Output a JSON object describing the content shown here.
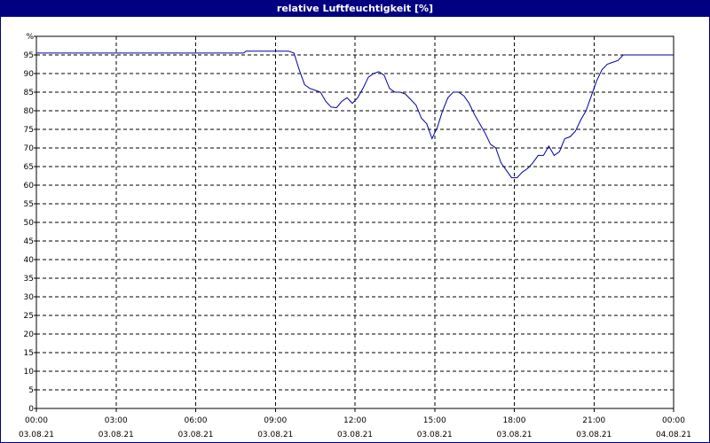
{
  "chart_data": {
    "type": "line",
    "title": "relative Luftfeuchtigkeit [%]",
    "y_unit_label": "%",
    "ylim": [
      0,
      100
    ],
    "xlim_hours": [
      0,
      24
    ],
    "grid": true,
    "y_ticks": [
      0,
      5,
      10,
      15,
      20,
      25,
      30,
      35,
      40,
      45,
      50,
      55,
      60,
      65,
      70,
      75,
      80,
      85,
      90,
      95
    ],
    "x_ticks": [
      {
        "time": "00:00",
        "date": "03.08.21"
      },
      {
        "time": "03:00",
        "date": "03.08.21"
      },
      {
        "time": "06:00",
        "date": "03.08.21"
      },
      {
        "time": "09:00",
        "date": "03.08.21"
      },
      {
        "time": "12:00",
        "date": "03.08.21"
      },
      {
        "time": "15:00",
        "date": "03.08.21"
      },
      {
        "time": "18:00",
        "date": "03.08.21"
      },
      {
        "time": "21:00",
        "date": "03.08.21"
      },
      {
        "time": "00:00",
        "date": "04.08.21"
      }
    ],
    "series": [
      {
        "color": "#0000a0",
        "x": [
          "03.08.21 00:00",
          "03.08.21 07:48",
          "03.08.21 07:54",
          "03.08.21 09:30",
          "03.08.21 09:42",
          "03.08.21 09:54",
          "03.08.21 10:06",
          "03.08.21 10:18",
          "03.08.21 10:30",
          "03.08.21 10:42",
          "03.08.21 10:54",
          "03.08.21 11:06",
          "03.08.21 11:18",
          "03.08.21 11:30",
          "03.08.21 11:42",
          "03.08.21 11:54",
          "03.08.21 12:06",
          "03.08.21 12:18",
          "03.08.21 12:30",
          "03.08.21 12:42",
          "03.08.21 12:54",
          "03.08.21 13:06",
          "03.08.21 13:18",
          "03.08.21 13:30",
          "03.08.21 13:42",
          "03.08.21 13:54",
          "03.08.21 14:06",
          "03.08.21 14:18",
          "03.08.21 14:30",
          "03.08.21 14:42",
          "03.08.21 14:54",
          "03.08.21 15:06",
          "03.08.21 15:18",
          "03.08.21 15:30",
          "03.08.21 15:42",
          "03.08.21 15:54",
          "03.08.21 16:06",
          "03.08.21 16:18",
          "03.08.21 16:30",
          "03.08.21 16:42",
          "03.08.21 16:54",
          "03.08.21 17:06",
          "03.08.21 17:18",
          "03.08.21 17:30",
          "03.08.21 17:42",
          "03.08.21 17:54",
          "03.08.21 18:06",
          "03.08.21 18:18",
          "03.08.21 18:30",
          "03.08.21 18:42",
          "03.08.21 18:54",
          "03.08.21 19:06",
          "03.08.21 19:18",
          "03.08.21 19:30",
          "03.08.21 19:42",
          "03.08.21 19:54",
          "03.08.21 20:06",
          "03.08.21 20:18",
          "03.08.21 20:30",
          "03.08.21 20:42",
          "03.08.21 20:54",
          "03.08.21 21:06",
          "03.08.21 21:18",
          "03.08.21 21:30",
          "03.08.21 21:42",
          "03.08.21 21:54",
          "03.08.21 22:06",
          "04.08.21 00:00"
        ],
        "y": [
          95.5,
          95.5,
          96,
          96,
          95.5,
          91,
          87,
          86,
          85.5,
          85,
          82.5,
          81,
          80.8,
          82.5,
          83.5,
          82,
          83.5,
          86,
          89,
          90,
          90.5,
          89.5,
          86,
          85,
          85,
          84.5,
          83,
          81.5,
          78,
          76.5,
          72.5,
          75.5,
          80,
          83.5,
          85,
          85,
          84,
          82,
          79,
          76.5,
          74,
          71,
          70,
          66,
          64,
          62,
          62,
          63.5,
          64.5,
          66,
          68,
          68,
          70.5,
          68,
          69,
          72.5,
          73,
          74.5,
          77.5,
          80,
          84,
          88,
          91,
          92.5,
          93,
          93.5,
          95,
          95
        ]
      }
    ]
  }
}
